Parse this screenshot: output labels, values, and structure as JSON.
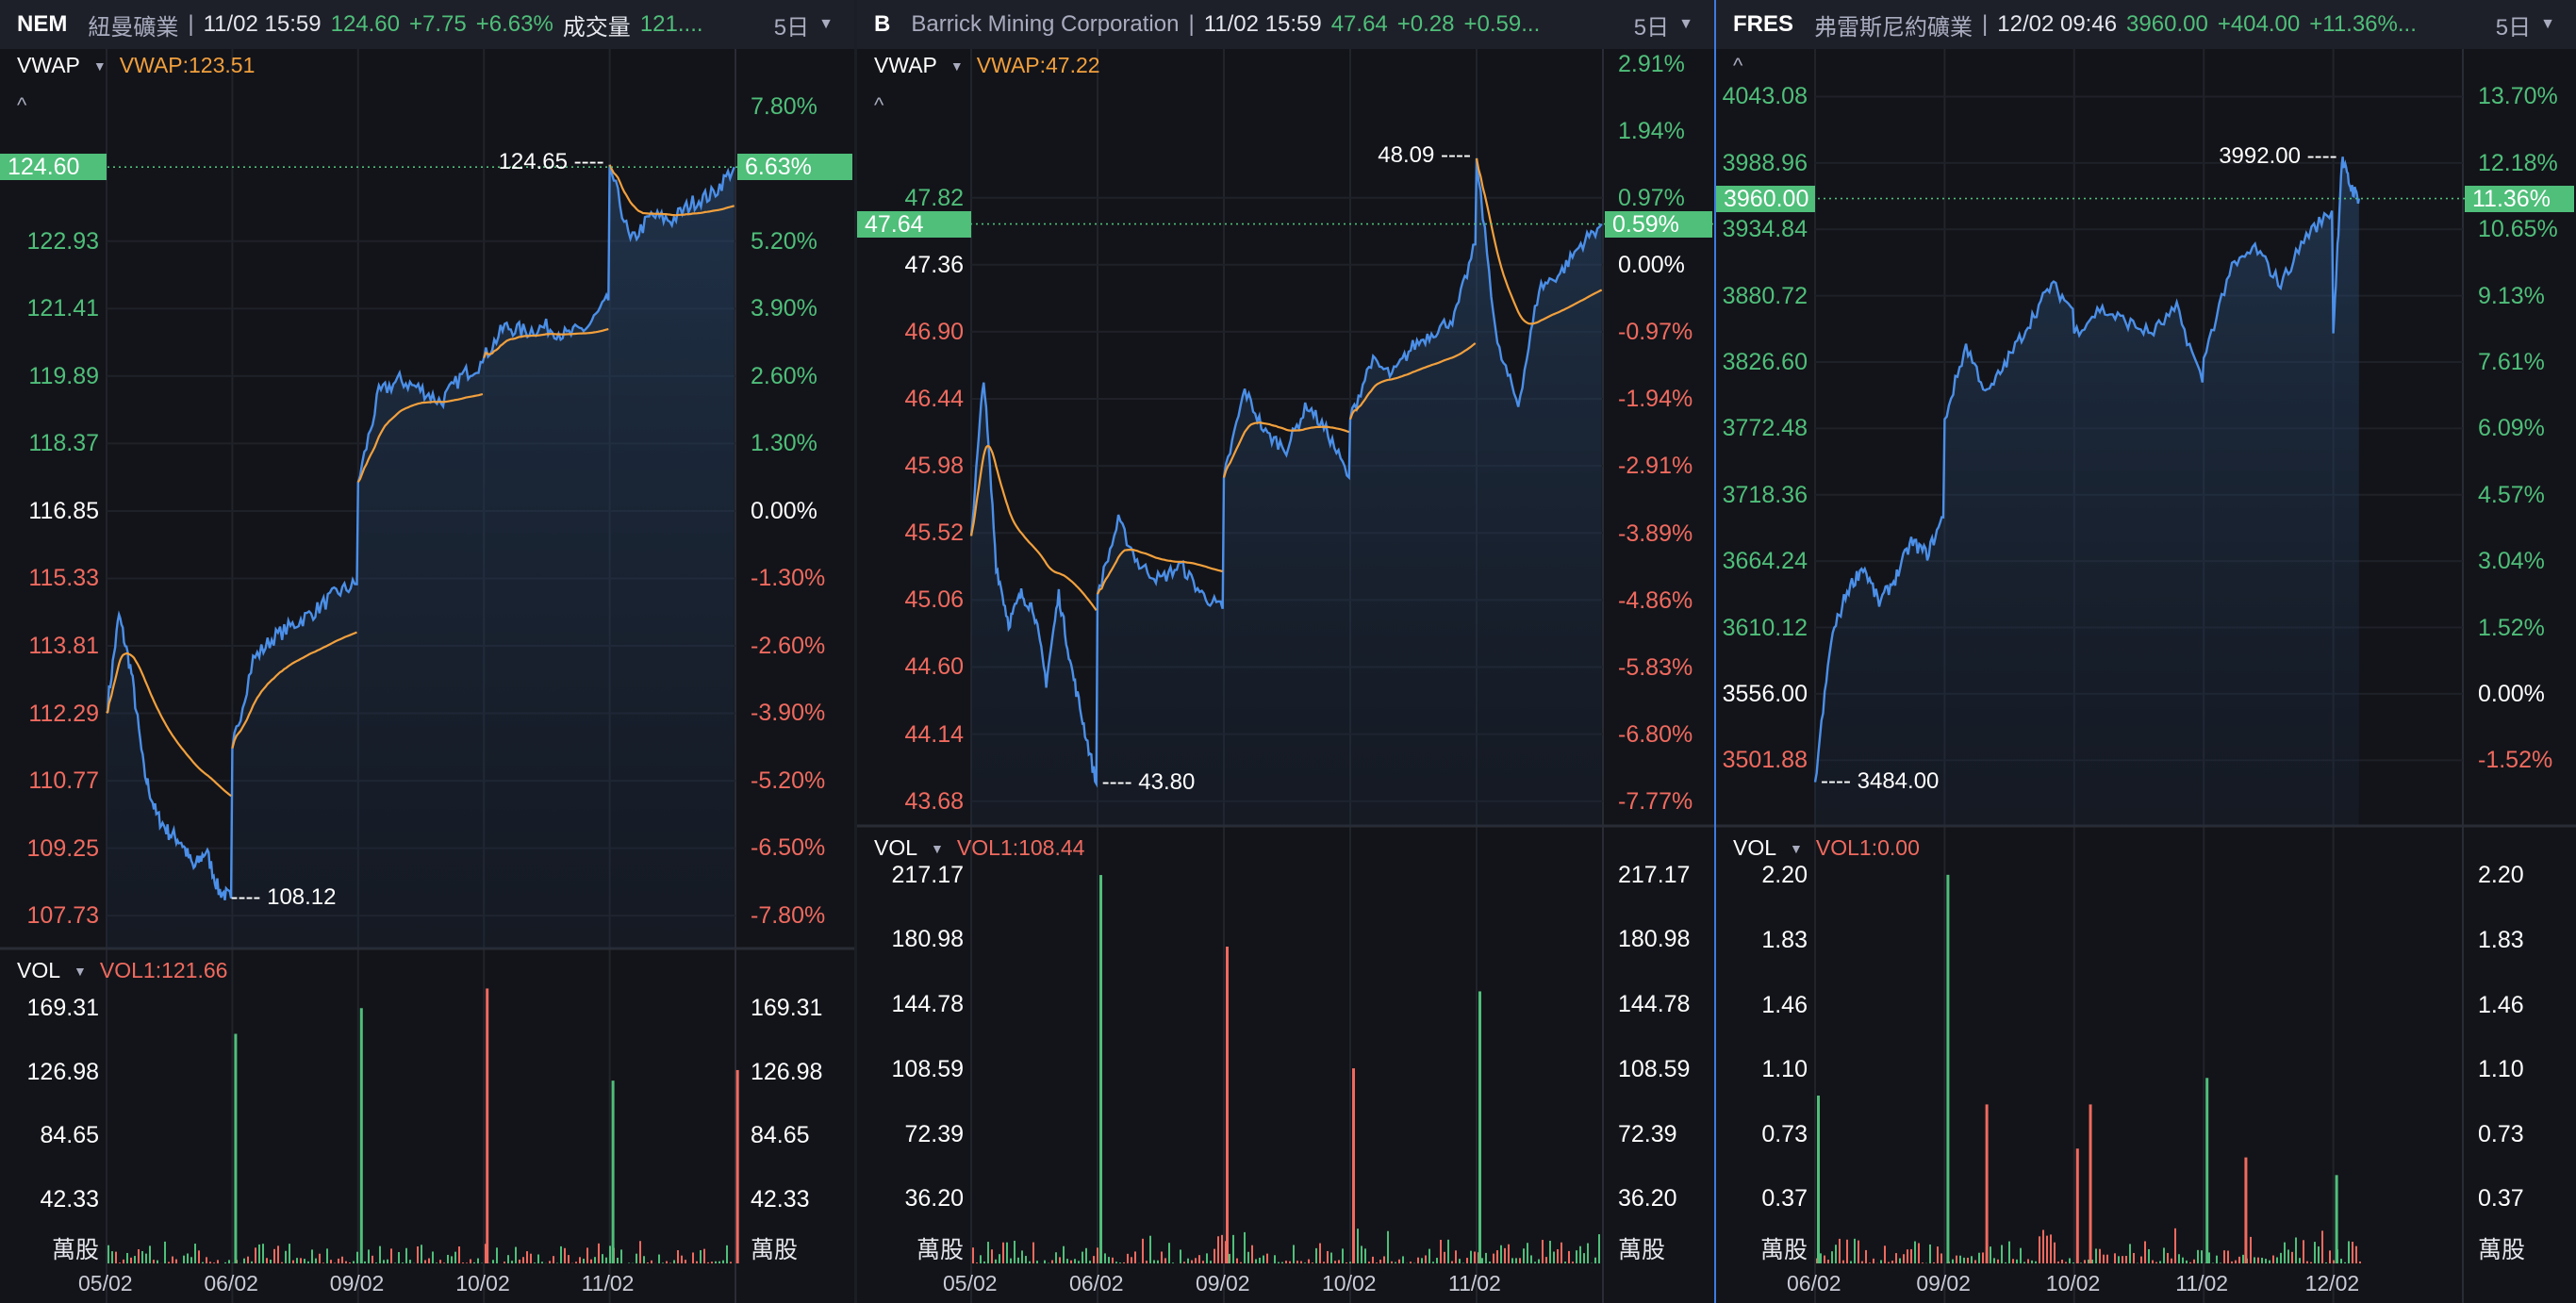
{
  "colors": {
    "up": "#4fbf7a",
    "down": "#f06a5f",
    "price_line": "#4b8fe8",
    "vwap": "#f2a03d",
    "bg": "#131419",
    "header": "#1e2029"
  },
  "panels": [
    {
      "header": {
        "symbol": "NEM",
        "name": "紐曼礦業",
        "separator": "|",
        "datetime": "11/02 15:59",
        "price": "124.60",
        "change": "+7.75",
        "change_pct": "+6.63%",
        "volume_label": "成交量",
        "volume_value": "121....",
        "period": "5日"
      },
      "indicator": {
        "name": "VWAP",
        "value": "VWAP:123.51"
      },
      "collapse_icon": "^",
      "volume_indicator": {
        "name": "VOL",
        "value": "VOL1:121.66"
      },
      "volume_unit": "萬股",
      "current_price_label": "124.60",
      "current_pct_label": "6.63%",
      "high_annotation": "124.65 ----",
      "low_annotation": "---- 108.12",
      "chart_data": {
        "type": "line",
        "title": "NEM 5日",
        "has_vwap": true,
        "ylim": [
          106.99,
          127.26
        ],
        "base_price": 116.85,
        "current_price": 124.6,
        "high": 124.65,
        "low": 108.12,
        "left_ticks": [
          "122.93",
          "121.41",
          "119.89",
          "118.37",
          "116.85",
          "115.33",
          "113.81",
          "112.29",
          "110.77",
          "109.25",
          "107.73"
        ],
        "right_ticks": [
          "7.80%",
          "5.20%",
          "3.90%",
          "2.60%",
          "1.30%",
          "0.00%",
          "-1.30%",
          "-2.60%",
          "-3.90%",
          "-5.20%",
          "-6.50%",
          "-7.80%"
        ],
        "x_labels": [
          "05/02",
          "06/02",
          "09/02",
          "10/02",
          "11/02"
        ],
        "last_day_fraction": 1.0,
        "days": [
          [
            112.3,
            114.5,
            113.2,
            111.0,
            110.0,
            109.6,
            109.4,
            108.8,
            109.2,
            108.3,
            108.12
          ],
          [
            111.5,
            113.5,
            114.0,
            114.3,
            114.6,
            115.0,
            115.2
          ],
          [
            117.5,
            119.5,
            119.8,
            119.6,
            119.3,
            119.9,
            120.2
          ],
          [
            120.3,
            121.0,
            120.9,
            121.0,
            120.8,
            121.0,
            121.6
          ],
          [
            124.65,
            122.9,
            123.5,
            123.4,
            123.8,
            124.0,
            124.6
          ]
        ],
        "volume": {
          "ylim": [
            0,
            196
          ],
          "ticks": [
            "169.31",
            "126.98",
            "84.65",
            "42.33"
          ],
          "spikes": [
            [
              1,
              152,
              "up"
            ],
            [
              2,
              169,
              "up"
            ],
            [
              3,
              182,
              "down"
            ],
            [
              4,
              121,
              "up"
            ],
            [
              4.99,
              128,
              "down"
            ]
          ]
        }
      }
    },
    {
      "header": {
        "symbol": "B",
        "name": "Barrick Mining Corporation",
        "separator": "|",
        "datetime": "11/02 15:59",
        "price": "47.64",
        "change": "+0.28",
        "change_pct": "+0.59...",
        "period": "5日"
      },
      "indicator": {
        "name": "VWAP",
        "value": "VWAP:47.22"
      },
      "collapse_icon": "^",
      "volume_indicator": {
        "name": "VOL",
        "value": "VOL1:108.44"
      },
      "volume_unit": "萬股",
      "current_price_label": "47.64",
      "current_pct_label": "0.59%",
      "high_annotation": "48.09 ----",
      "low_annotation": "---- 43.80",
      "chart_data": {
        "type": "line",
        "title": "B 5日",
        "has_vwap": true,
        "ylim": [
          43.51,
          48.84
        ],
        "base_price": 47.36,
        "current_price": 47.64,
        "high": 48.09,
        "low": 43.8,
        "left_ticks": [
          "47.82",
          "47.36",
          "46.90",
          "46.44",
          "45.98",
          "45.52",
          "45.06",
          "44.60",
          "44.14",
          "43.68"
        ],
        "right_ticks": [
          "2.91%",
          "1.94%",
          "0.97%",
          "0.00%",
          "-0.97%",
          "-1.94%",
          "-2.91%",
          "-3.89%",
          "-4.86%",
          "-5.83%",
          "-6.80%",
          "-7.77%"
        ],
        "x_labels": [
          "05/02",
          "06/02",
          "09/02",
          "10/02",
          "11/02"
        ],
        "last_day_fraction": 1.0,
        "days": [
          [
            45.5,
            46.6,
            45.3,
            44.9,
            45.1,
            45.0,
            44.5,
            45.1,
            44.6,
            44.2,
            43.8
          ],
          [
            45.1,
            45.6,
            45.3,
            45.2,
            45.3,
            45.1,
            45.0
          ],
          [
            45.9,
            46.5,
            46.2,
            46.1,
            46.4,
            46.2,
            45.9
          ],
          [
            46.3,
            46.7,
            46.6,
            46.8,
            46.9,
            47.0,
            47.5
          ],
          [
            48.09,
            46.8,
            46.4,
            47.2,
            47.3,
            47.5,
            47.64
          ]
        ],
        "volume": {
          "ylim": [
            0,
            233.9
          ],
          "ticks": [
            "217.17",
            "180.98",
            "144.78",
            "108.59",
            "72.39",
            "36.20"
          ],
          "spikes": [
            [
              1,
              217,
              "up"
            ],
            [
              2,
              177,
              "down"
            ],
            [
              3,
              109,
              "down"
            ],
            [
              4,
              152,
              "up"
            ]
          ]
        }
      }
    },
    {
      "header": {
        "symbol": "FRES",
        "name": "弗雷斯尼約礦業",
        "separator": "|",
        "datetime": "12/02 09:46",
        "price": "3960.00",
        "change": "+404.00",
        "change_pct": "+11.36%...",
        "period": "5日"
      },
      "indicator": {
        "name": "",
        "value": ""
      },
      "collapse_icon": "^",
      "volume_indicator": {
        "name": "VOL",
        "value": "VOL1:0.00"
      },
      "volume_unit": "萬股",
      "current_price_label": "3960.00",
      "current_pct_label": "11.36%",
      "high_annotation": "3992.00 ----",
      "low_annotation": "---- 3484.00",
      "chart_data": {
        "type": "line",
        "title": "FRES 5日",
        "has_vwap": false,
        "ylim": [
          3448.3,
          4081.9
        ],
        "base_price": 3556.0,
        "current_price": 3960.0,
        "high": 3992.0,
        "low": 3484.0,
        "left_ticks": [
          "4043.08",
          "3988.96",
          "3934.84",
          "3880.72",
          "3826.60",
          "3772.48",
          "3718.36",
          "3664.24",
          "3610.12",
          "3556.00",
          "3501.88"
        ],
        "right_ticks": [
          "13.70%",
          "12.18%",
          "10.65%",
          "9.13%",
          "7.61%",
          "6.09%",
          "4.57%",
          "3.04%",
          "1.52%",
          "0.00%",
          "-1.52%"
        ],
        "x_labels": [
          "06/02",
          "09/02",
          "10/02",
          "11/02",
          "12/02"
        ],
        "last_day_fraction": 0.2,
        "days": [
          [
            3484,
            3600,
            3640,
            3660,
            3630,
            3650,
            3680,
            3670,
            3700
          ],
          [
            3780,
            3840,
            3800,
            3830,
            3860,
            3890,
            3870
          ],
          [
            3850,
            3870,
            3860,
            3850,
            3870,
            3810
          ],
          [
            3830,
            3900,
            3920,
            3890,
            3930,
            3950
          ],
          [
            3850,
            3992,
            3970,
            3960
          ]
        ],
        "volume": {
          "ylim": [
            0,
            2.37
          ],
          "ticks": [
            "2.20",
            "1.83",
            "1.46",
            "1.10",
            "0.73",
            "0.37"
          ],
          "spikes": [
            [
              0,
              0.95,
              "up"
            ],
            [
              1,
              2.2,
              "up"
            ],
            [
              1.3,
              0.9,
              "down"
            ],
            [
              2,
              0.65,
              "down"
            ],
            [
              2.1,
              0.9,
              "down"
            ],
            [
              3,
              1.05,
              "up"
            ],
            [
              3.3,
              0.6,
              "down"
            ],
            [
              4,
              0.5,
              "up"
            ]
          ]
        }
      }
    }
  ]
}
